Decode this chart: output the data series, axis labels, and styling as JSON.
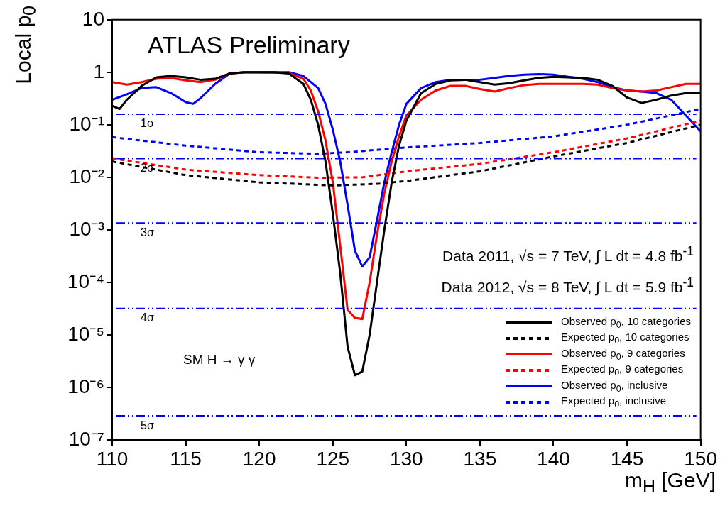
{
  "chart_data": {
    "type": "line",
    "xlabel": "m$_{H}$ [GeV]",
    "ylabel": "Local p$_{0}$",
    "xlim": [
      110,
      150
    ],
    "xticks": [
      110,
      115,
      120,
      125,
      130,
      135,
      140,
      145,
      150
    ],
    "ylim": [
      1e-07,
      10
    ],
    "yticks": [
      {
        "value": 1e-07,
        "label": "10⁻⁷"
      },
      {
        "value": 1e-06,
        "label": "10⁻⁶"
      },
      {
        "value": 1e-05,
        "label": "10⁻⁵"
      },
      {
        "value": 0.0001,
        "label": "10⁻⁴"
      },
      {
        "value": 0.001,
        "label": "10⁻³"
      },
      {
        "value": 0.01,
        "label": "10⁻²"
      },
      {
        "value": 0.1,
        "label": "10⁻¹"
      },
      1,
      10
    ],
    "log": "y",
    "grid": false,
    "legend": "bottom right",
    "annotations": [
      "ATLAS Preliminary",
      "Data 2011, √s = 7 TeV, ∫ L dt = 4.8 fb$^{-1}$",
      "Data 2012, √s = 8 TeV, ∫ L dt = 5.9 fb$^{-1}$",
      "SM H → γ γ"
    ],
    "ref_lines": [
      {
        "axis": "y",
        "value": 0.159,
        "label": "1σ",
        "color": "#0000ff",
        "line_style": "dashed"
      },
      {
        "axis": "y",
        "value": 0.0228,
        "label": "2σ",
        "color": "#0000ff",
        "line_style": "dashed"
      },
      {
        "axis": "y",
        "value": 0.00135,
        "label": "3σ",
        "color": "#0000ff",
        "line_style": "dashed"
      },
      {
        "axis": "y",
        "value": 3.17e-05,
        "label": "4σ",
        "color": "#0000ff",
        "line_style": "dashed"
      },
      {
        "axis": "y",
        "value": 2.87e-07,
        "label": "5σ",
        "color": "#0000ff",
        "line_style": "dashed"
      }
    ],
    "series": [
      {
        "name": "Observed p$_{0}$, 10 categories",
        "color": "#000000",
        "line_style": "solid",
        "x": [
          110,
          110.5,
          111,
          112,
          113,
          114,
          115,
          116,
          117,
          118,
          119,
          120,
          121,
          122,
          123,
          123.5,
          124,
          124.5,
          125,
          125.5,
          126,
          126.5,
          127,
          127.5,
          128,
          128.5,
          129,
          129.5,
          130,
          131,
          132,
          133,
          134,
          135,
          136,
          137,
          138,
          139,
          140,
          141,
          142,
          143,
          144,
          145,
          146,
          147,
          148,
          149,
          150
        ],
        "values": [
          0.23,
          0.2,
          0.3,
          0.55,
          0.8,
          0.85,
          0.8,
          0.72,
          0.75,
          0.95,
          1,
          1,
          1,
          0.95,
          0.6,
          0.3,
          0.1,
          0.02,
          0.002,
          0.00015,
          6e-06,
          1.7e-06,
          2e-06,
          1e-05,
          0.0001,
          0.001,
          0.008,
          0.04,
          0.12,
          0.4,
          0.6,
          0.7,
          0.72,
          0.65,
          0.58,
          0.62,
          0.7,
          0.78,
          0.82,
          0.8,
          0.78,
          0.72,
          0.55,
          0.33,
          0.26,
          0.3,
          0.36,
          0.4,
          0.4
        ]
      },
      {
        "name": "Expected p$_{0}$, 10 categories",
        "color": "#000000",
        "line_style": "dashed",
        "x": [
          110,
          115,
          120,
          125,
          128,
          130,
          135,
          140,
          145,
          150
        ],
        "values": [
          0.02,
          0.011,
          0.008,
          0.007,
          0.0075,
          0.0085,
          0.013,
          0.025,
          0.045,
          0.1
        ]
      },
      {
        "name": "Observed p$_{0}$, 9 categories",
        "color": "#ff0000",
        "line_style": "solid",
        "x": [
          110,
          111,
          112,
          113,
          114,
          115,
          116,
          117,
          118,
          119,
          122,
          123,
          123.5,
          124,
          124.5,
          125,
          125.5,
          126,
          126.5,
          127,
          127.5,
          128,
          128.5,
          129,
          129.5,
          130,
          131,
          132,
          133,
          134,
          135,
          136,
          137,
          138,
          139,
          140,
          141,
          142,
          143,
          144,
          145,
          146,
          147,
          148,
          149,
          150
        ],
        "values": [
          0.65,
          0.58,
          0.65,
          0.75,
          0.78,
          0.7,
          0.65,
          0.72,
          0.95,
          1,
          0.97,
          0.75,
          0.45,
          0.18,
          0.05,
          0.008,
          0.0005,
          3e-05,
          2.1e-05,
          2e-05,
          0.0001,
          0.0008,
          0.005,
          0.02,
          0.06,
          0.15,
          0.3,
          0.45,
          0.55,
          0.55,
          0.48,
          0.43,
          0.5,
          0.57,
          0.6,
          0.6,
          0.6,
          0.6,
          0.58,
          0.5,
          0.45,
          0.43,
          0.45,
          0.52,
          0.6,
          0.6
        ]
      },
      {
        "name": "Expected p$_{0}$, 9 categories",
        "color": "#ff0000",
        "line_style": "dashed",
        "x": [
          110,
          115,
          120,
          124,
          127,
          130,
          135,
          140,
          145,
          150
        ],
        "values": [
          0.023,
          0.014,
          0.011,
          0.0098,
          0.01,
          0.013,
          0.018,
          0.03,
          0.055,
          0.12
        ]
      },
      {
        "name": "Observed p$_{0}$, inclusive",
        "color": "#0000ff",
        "line_style": "solid",
        "x": [
          110,
          111,
          112,
          113,
          114,
          115,
          115.5,
          116,
          117,
          118,
          119,
          122,
          123,
          124,
          124.5,
          125,
          125.5,
          126,
          126.5,
          127,
          127.5,
          128,
          128.5,
          129,
          129.5,
          130,
          131,
          132,
          133,
          134,
          135,
          136,
          137,
          138,
          139,
          140,
          141,
          142,
          143,
          144,
          145,
          146,
          147,
          148,
          149,
          150
        ],
        "values": [
          0.3,
          0.38,
          0.5,
          0.52,
          0.4,
          0.27,
          0.25,
          0.32,
          0.6,
          0.95,
          1,
          1,
          0.85,
          0.5,
          0.25,
          0.08,
          0.02,
          0.003,
          0.0004,
          0.0002,
          0.0003,
          0.0015,
          0.008,
          0.03,
          0.1,
          0.25,
          0.5,
          0.65,
          0.72,
          0.72,
          0.72,
          0.78,
          0.85,
          0.9,
          0.92,
          0.9,
          0.82,
          0.75,
          0.65,
          0.52,
          0.45,
          0.43,
          0.4,
          0.3,
          0.15,
          0.075
        ]
      },
      {
        "name": "Expected p$_{0}$, inclusive",
        "color": "#0000ff",
        "line_style": "dashed",
        "x": [
          110,
          115,
          120,
          124,
          126,
          130,
          135,
          140,
          145,
          150
        ],
        "values": [
          0.058,
          0.04,
          0.03,
          0.028,
          0.03,
          0.037,
          0.045,
          0.06,
          0.1,
          0.2
        ]
      }
    ]
  }
}
